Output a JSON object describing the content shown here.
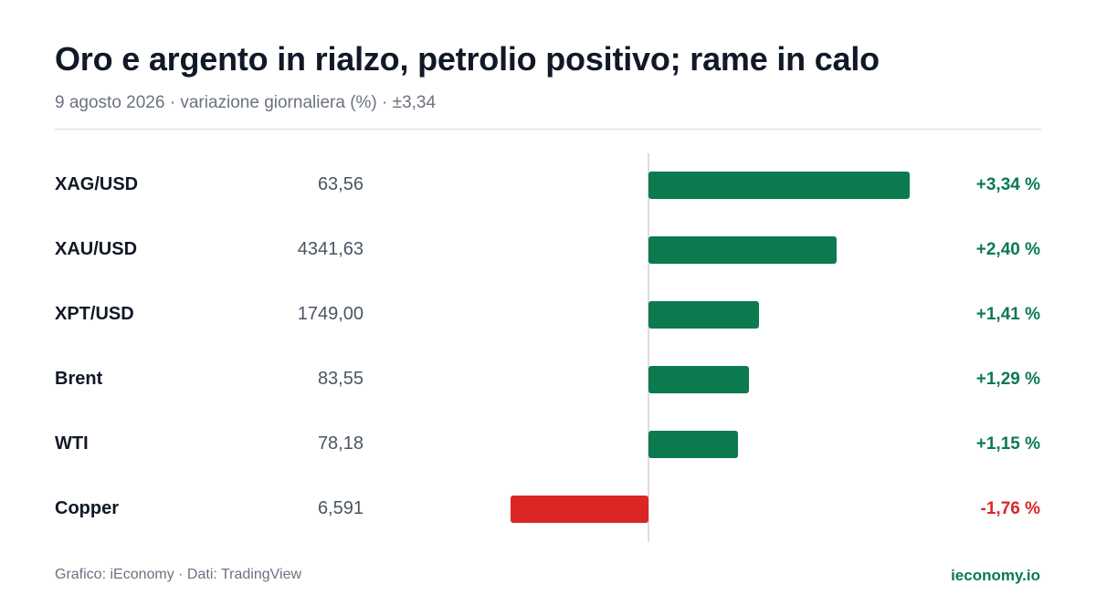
{
  "header": {
    "title": "Oro e argento in rialzo, petrolio positivo; rame in calo",
    "subtitle": "9 agosto 2026 · variazione giornaliera (%) · ±3,34"
  },
  "footer": {
    "source": "Grafico: iEconomy · Dati: TradingView",
    "brand": "ieconomy.io"
  },
  "colors": {
    "positive": "#0b7a4f",
    "negative": "#dc2626"
  },
  "chart_data": {
    "type": "bar",
    "orientation": "horizontal",
    "xlim": [
      -3.34,
      3.34
    ],
    "categories": [
      "XAG/USD",
      "XAU/USD",
      "XPT/USD",
      "Brent",
      "WTI",
      "Copper"
    ],
    "prices": [
      "63,56",
      "4341,63",
      "1749,00",
      "83,55",
      "78,18",
      "6,591"
    ],
    "values": [
      3.34,
      2.4,
      1.41,
      1.29,
      1.15,
      -1.76
    ],
    "value_labels": [
      "+3,34 %",
      "+2,40 %",
      "+1,41 %",
      "+1,29 %",
      "+1,15 %",
      "-1,76 %"
    ]
  }
}
